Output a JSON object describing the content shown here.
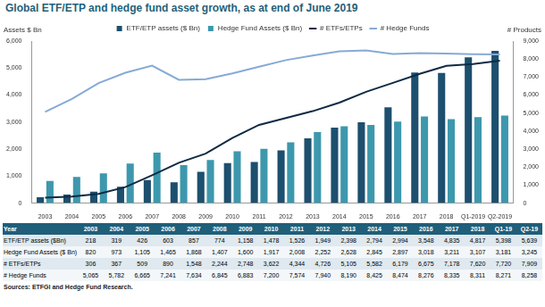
{
  "chart_data": {
    "type": "bar",
    "title": "Global ETF/ETP and hedge fund asset growth, as at end of June 2019",
    "categories": [
      "2003",
      "2004",
      "2005",
      "2006",
      "2007",
      "2008",
      "2009",
      "2010",
      "2011",
      "2012",
      "2013",
      "2014",
      "2015",
      "2016",
      "2017",
      "2018",
      "Q1-2019",
      "Q2-2019"
    ],
    "series": [
      {
        "name": "ETF/ETP assets ($ Bn)",
        "type": "bar",
        "color": "#1d4f6e",
        "values": [
          218,
          319,
          426,
          603,
          857,
          774,
          1158,
          1478,
          1526,
          1949,
          2398,
          2794,
          2994,
          3548,
          4835,
          4817,
          5398,
          5639
        ]
      },
      {
        "name": "Hedge Fund Assets ($ Bn)",
        "type": "bar",
        "color": "#3d98ad",
        "values": [
          820,
          973,
          1105,
          1465,
          1868,
          1407,
          1600,
          1917,
          2008,
          2252,
          2628,
          2845,
          2897,
          3018,
          3211,
          3107,
          3181,
          3245
        ]
      },
      {
        "name": "# ETFs/ETPs",
        "type": "line",
        "axis": "y2",
        "color": "#0f2a44",
        "values": [
          306,
          367,
          509,
          890,
          1548,
          2244,
          2748,
          3622,
          4344,
          4726,
          5105,
          5582,
          6179,
          6675,
          7178,
          7620,
          7720,
          7909
        ]
      },
      {
        "name": "# Hedge Funds",
        "type": "line",
        "axis": "y2",
        "color": "#86aad6",
        "values": [
          5065,
          5782,
          6665,
          7241,
          7634,
          6845,
          6883,
          7200,
          7574,
          7940,
          8190,
          8425,
          8474,
          8276,
          8335,
          8311,
          8271,
          8258
        ]
      }
    ],
    "y_label": "Assets $ Bn",
    "ylim": [
      0,
      6000
    ],
    "yticks": [
      0,
      {
        "value": 1000,
        "label": "1,000"
      },
      {
        "value": 2000,
        "label": "2,000"
      },
      {
        "value": 3000,
        "label": "3,000"
      },
      {
        "value": 4000,
        "label": "4,000"
      },
      {
        "value": 5000,
        "label": "5,000"
      },
      {
        "value": 6000,
        "label": "6,000"
      }
    ],
    "y2_label": "# Products",
    "y2lim": [
      0,
      9000
    ],
    "y2ticks": [
      0,
      {
        "value": 1000,
        "label": "1,000"
      },
      {
        "value": 2000,
        "label": "2,000"
      },
      {
        "value": 3000,
        "label": "3,000"
      },
      {
        "value": 4000,
        "label": "4,000"
      },
      {
        "value": 5000,
        "label": "5,000"
      },
      {
        "value": 6000,
        "label": "6,000"
      },
      {
        "value": 7000,
        "label": "7,000"
      },
      {
        "value": 8000,
        "label": "8,000"
      },
      {
        "value": 9000,
        "label": "9,000"
      }
    ],
    "grid": false,
    "legend": "top"
  },
  "table": {
    "header": [
      "Year",
      "2003",
      "2004",
      "2005",
      "2006",
      "2007",
      "2008",
      "2009",
      "2010",
      "2011",
      "2012",
      "2013",
      "2014",
      "2015",
      "2016",
      "2017",
      "2018",
      "Q1-19",
      "Q2-19"
    ],
    "rows": [
      [
        "ETF/ETP assets ($Bn)",
        "218",
        "319",
        "426",
        "603",
        "857",
        "774",
        "1,158",
        "1,478",
        "1,526",
        "1,949",
        "2,398",
        "2,794",
        "2,994",
        "3,548",
        "4,835",
        "4,817",
        "5,398",
        "5,639"
      ],
      [
        "Hedge Fund Assets ($ Bn)",
        "820",
        "973",
        "1,105",
        "1,465",
        "1,868",
        "1,407",
        "1,600",
        "1,917",
        "2,008",
        "2,252",
        "2,628",
        "2,845",
        "2,897",
        "3,018",
        "3,211",
        "3,107",
        "3,181",
        "3,245"
      ],
      [
        "# ETFs/ETPs",
        "306",
        "367",
        "509",
        "890",
        "1,548",
        "2,244",
        "2,748",
        "3,622",
        "4,344",
        "4,726",
        "5,105",
        "5,582",
        "6,179",
        "6,675",
        "7,178",
        "7,620",
        "7,720",
        "7,909"
      ],
      [
        "# Hedge Funds",
        "5,065",
        "5,782",
        "6,665",
        "7,241",
        "7,634",
        "6,845",
        "6,883",
        "7,200",
        "7,574",
        "7,940",
        "8,190",
        "8,425",
        "8,474",
        "8,276",
        "8,335",
        "8,311",
        "8,271",
        "8,258"
      ]
    ]
  },
  "source": "Sources: ETFGI and Hedge Fund Research."
}
